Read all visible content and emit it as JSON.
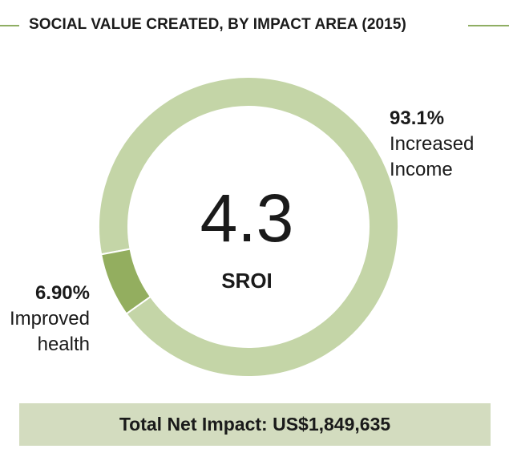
{
  "header": {
    "title": "SOCIAL VALUE CREATED, BY IMPACT AREA (2015)"
  },
  "center": {
    "value": "4.3",
    "label": "SROI"
  },
  "footer": {
    "total_label": "Total Net Impact: US$1,849,635"
  },
  "colors": {
    "income": "#c4d5a7",
    "health": "#93ae5f",
    "accent_line": "#8fae63",
    "footer_bg": "#d3dcbf"
  },
  "chart_data": {
    "type": "pie",
    "categories": [
      "Increased Income",
      "Improved health"
    ],
    "values": [
      93.1,
      6.9
    ],
    "labels": [
      "93.1%",
      "6.90%"
    ],
    "title": "SOCIAL VALUE CREATED, BY IMPACT AREA (2015)",
    "legend": "none",
    "grid": false
  }
}
